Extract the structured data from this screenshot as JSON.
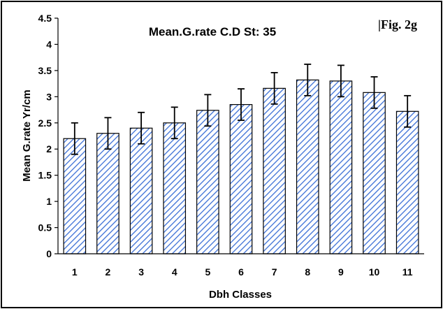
{
  "chart_data": {
    "type": "bar",
    "title": "Mean.G.rate C.D St: 35",
    "figure_label": "|Fig. 2g",
    "xlabel": "Dbh Classes",
    "ylabel": "Mean G.rate Yr/cm",
    "categories": [
      "1",
      "2",
      "3",
      "4",
      "5",
      "6",
      "7",
      "8",
      "9",
      "10",
      "11"
    ],
    "values": [
      2.2,
      2.3,
      2.4,
      2.5,
      2.74,
      2.85,
      3.16,
      3.32,
      3.3,
      3.08,
      2.72
    ],
    "error": [
      0.3,
      0.3,
      0.3,
      0.3,
      0.3,
      0.3,
      0.3,
      0.3,
      0.3,
      0.3,
      0.3
    ],
    "ylim": [
      0,
      4.5
    ],
    "yticks": [
      "0",
      "0.5",
      "1",
      "1.5",
      "2",
      "2.5",
      "3",
      "3.5",
      "4",
      "4.5"
    ],
    "grid": false,
    "bar_color": "#3b6fd6",
    "bar_pattern": "diagonal-hatch"
  }
}
